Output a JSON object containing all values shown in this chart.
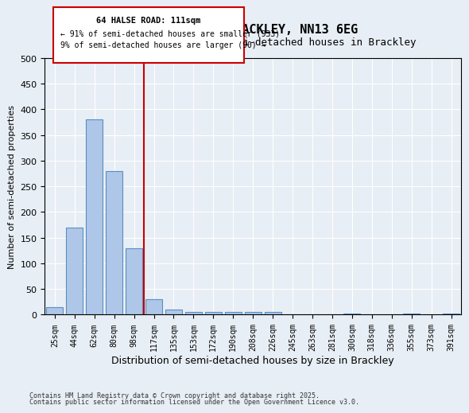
{
  "title1": "64, HALSE ROAD, BRACKLEY, NN13 6EG",
  "title2": "Size of property relative to semi-detached houses in Brackley",
  "xlabel": "Distribution of semi-detached houses by size in Brackley",
  "ylabel": "Number of semi-detached properties",
  "categories": [
    "25sqm",
    "44sqm",
    "62sqm",
    "80sqm",
    "98sqm",
    "117sqm",
    "135sqm",
    "153sqm",
    "172sqm",
    "190sqm",
    "208sqm",
    "226sqm",
    "245sqm",
    "263sqm",
    "281sqm",
    "300sqm",
    "318sqm",
    "336sqm",
    "355sqm",
    "373sqm",
    "391sqm"
  ],
  "values": [
    15,
    170,
    380,
    280,
    130,
    30,
    10,
    5,
    5,
    5,
    5,
    5,
    0,
    0,
    0,
    3,
    0,
    0,
    3,
    0,
    3
  ],
  "bar_color": "#aec6e8",
  "bar_edge_color": "#5a8fc0",
  "vline_x": 5,
  "vline_color": "#cc0000",
  "annotation_title": "64 HALSE ROAD: 111sqm",
  "annotation_line2": "← 91% of semi-detached houses are smaller (933)",
  "annotation_line3": "9% of semi-detached houses are larger (90) →",
  "annotation_box_color": "#cc0000",
  "background_color": "#e8eef5",
  "plot_bg_color": "#e8eef5",
  "ylim": [
    0,
    500
  ],
  "footer1": "Contains HM Land Registry data © Crown copyright and database right 2025.",
  "footer2": "Contains public sector information licensed under the Open Government Licence v3.0."
}
